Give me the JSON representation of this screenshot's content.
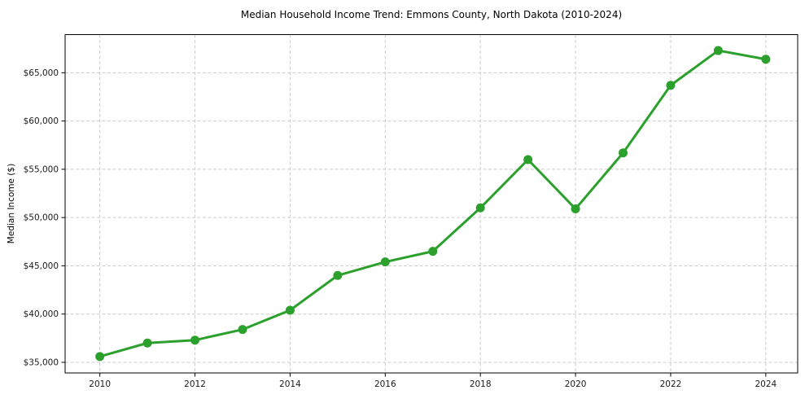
{
  "page": {
    "background": "#ffffff"
  },
  "chart_data": {
    "type": "line",
    "title": "Median Household Income Trend: Emmons County, North Dakota (2010-2024)",
    "xlabel": "",
    "ylabel": "Median Income ($)",
    "series_name": "Median Household Income",
    "x": [
      2010,
      2011,
      2012,
      2013,
      2014,
      2015,
      2016,
      2017,
      2018,
      2019,
      2020,
      2021,
      2022,
      2023,
      2024
    ],
    "values": [
      35600,
      37000,
      37300,
      38400,
      40400,
      44000,
      45400,
      46500,
      51000,
      56000,
      50900,
      56700,
      63700,
      67300,
      66400
    ],
    "xlim": [
      2009.27,
      2024.67
    ],
    "ylim": [
      33900,
      68950
    ],
    "xticks": [
      2010,
      2012,
      2014,
      2016,
      2018,
      2020,
      2022,
      2024
    ],
    "xtick_labels": [
      "2010",
      "2012",
      "2014",
      "2016",
      "2018",
      "2020",
      "2022",
      "2024"
    ],
    "yticks": [
      35000,
      40000,
      45000,
      50000,
      55000,
      60000,
      65000
    ],
    "ytick_labels": [
      "$35,000",
      "$40,000",
      "$45,000",
      "$50,000",
      "$55,000",
      "$60,000",
      "$65,000"
    ],
    "grid": true,
    "grid_linestyle": "dashed",
    "legend_visible": false,
    "line_color": "#2ca02c",
    "grid_color": "#cccccc",
    "spine_color": "#000000",
    "text_color": "#1a1a1a",
    "marker": "circle",
    "marker_radius": 5.5,
    "line_width": 3
  }
}
